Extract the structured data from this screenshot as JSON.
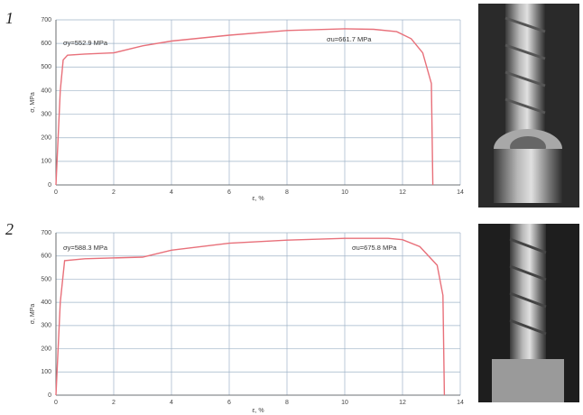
{
  "chart_data": [
    {
      "type": "line",
      "panel_label": "1",
      "ylabel": "σ, MPa",
      "xlabel": "ε, %",
      "annotations": [
        "σy=552.9 MPa",
        "σu=661.7 MPa"
      ],
      "x": [
        0,
        0.15,
        0.25,
        0.4,
        1,
        2,
        3,
        4,
        6,
        8,
        10,
        11,
        11.8,
        12.3,
        12.7,
        13,
        13.05
      ],
      "values": [
        0,
        400,
        530,
        550,
        555,
        560,
        590,
        610,
        635,
        655,
        662,
        660,
        650,
        620,
        560,
        430,
        0
      ],
      "color": "#e8707a",
      "xlim": [
        0,
        14
      ],
      "ylim": [
        0,
        700
      ],
      "xticks": [
        0,
        2,
        4,
        6,
        8,
        10,
        12,
        14
      ],
      "yticks": [
        0,
        100,
        200,
        300,
        400,
        500,
        600,
        700
      ],
      "grid": true
    },
    {
      "type": "line",
      "panel_label": "2",
      "ylabel": "σ, MPa",
      "xlabel": "ε, %",
      "annotations": [
        "σy=588.3 MPa",
        "σu=675.8 MPa"
      ],
      "x": [
        0,
        0.15,
        0.3,
        1,
        3,
        4,
        6,
        8,
        10,
        11.5,
        12,
        12.6,
        13.2,
        13.4,
        13.45
      ],
      "values": [
        0,
        400,
        580,
        588,
        595,
        625,
        655,
        668,
        676,
        676,
        670,
        640,
        560,
        430,
        0
      ],
      "color": "#e8707a",
      "xlim": [
        0,
        14
      ],
      "ylim": [
        0,
        700
      ],
      "xticks": [
        0,
        2,
        4,
        6,
        8,
        10,
        12,
        14
      ],
      "yticks": [
        0,
        100,
        200,
        300,
        400,
        500,
        600,
        700
      ],
      "grid": true
    }
  ]
}
